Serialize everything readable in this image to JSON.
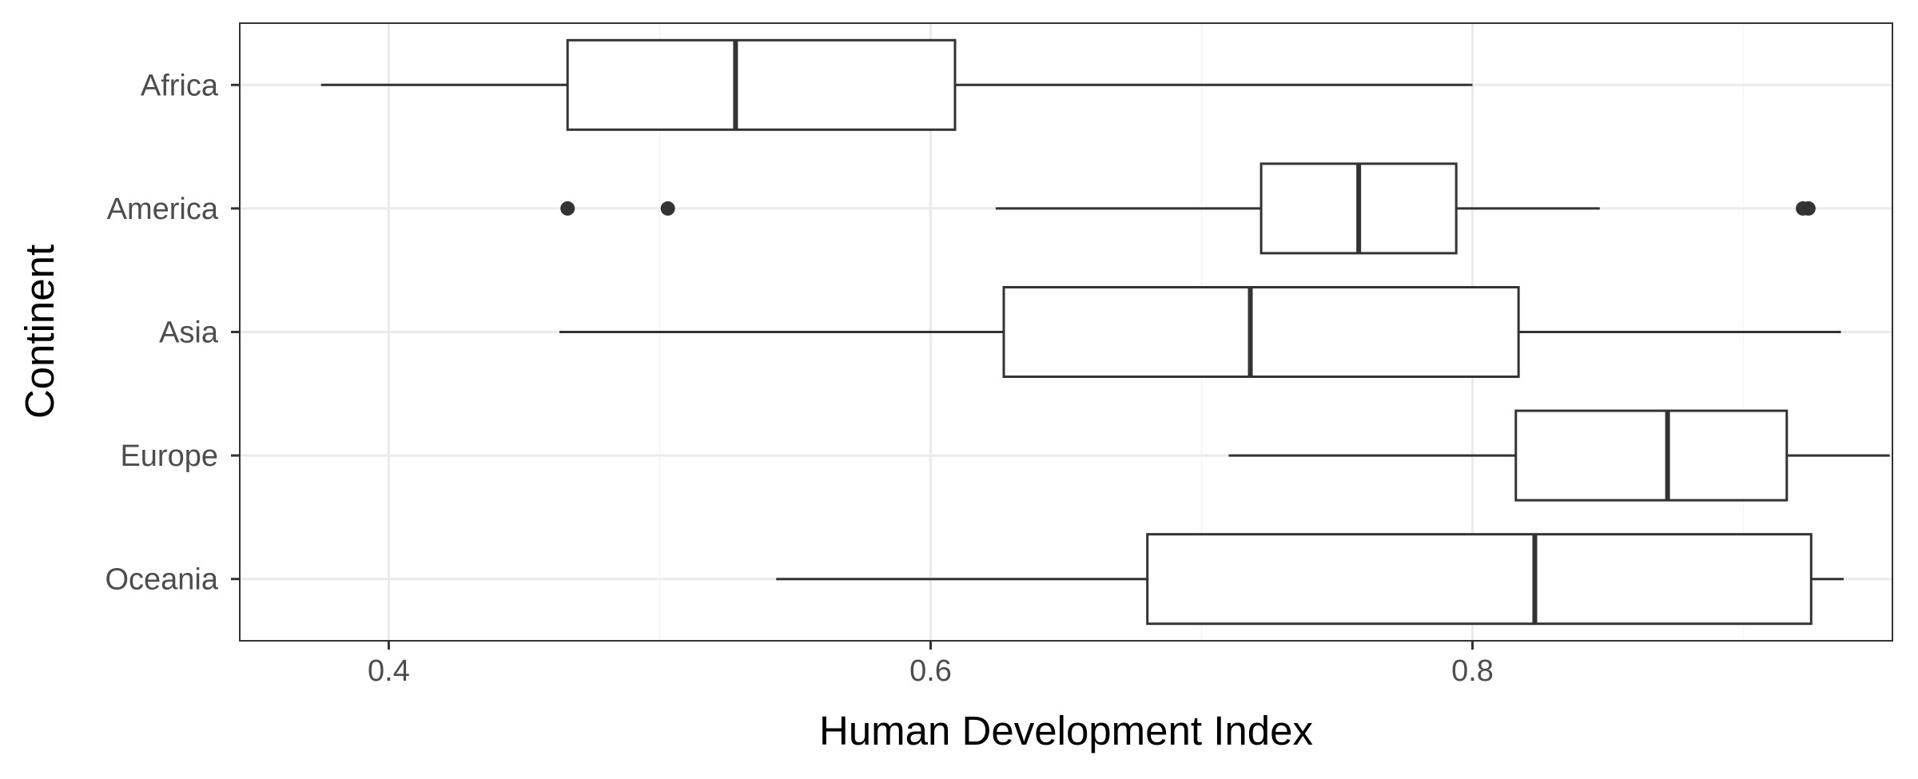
{
  "chart_data": {
    "type": "boxplot",
    "orientation": "horizontal",
    "title": "",
    "xlabel": "Human Development Index",
    "ylabel": "Continent",
    "xlim": [
      0.345,
      0.955
    ],
    "x_ticks": [
      0.4,
      0.6,
      0.8
    ],
    "x_tick_labels": [
      "0.4",
      "0.6",
      "0.8"
    ],
    "grid": true,
    "legend": "none",
    "categories": [
      "Africa",
      "America",
      "Asia",
      "Europe",
      "Oceania"
    ],
    "boxes": [
      {
        "category": "Africa",
        "whisker_low": 0.375,
        "q1": 0.466,
        "median": 0.528,
        "q3": 0.609,
        "whisker_high": 0.8,
        "outliers": []
      },
      {
        "category": "America",
        "whisker_low": 0.624,
        "q1": 0.722,
        "median": 0.758,
        "q3": 0.794,
        "whisker_high": 0.847,
        "outliers": [
          0.466,
          0.503,
          0.922,
          0.924
        ]
      },
      {
        "category": "Asia",
        "whisker_low": 0.463,
        "q1": 0.627,
        "median": 0.718,
        "q3": 0.817,
        "whisker_high": 0.936,
        "outliers": []
      },
      {
        "category": "Europe",
        "whisker_low": 0.71,
        "q1": 0.816,
        "median": 0.872,
        "q3": 0.916,
        "whisker_high": 0.954,
        "outliers": []
      },
      {
        "category": "Oceania",
        "whisker_low": 0.543,
        "q1": 0.68,
        "median": 0.823,
        "q3": 0.925,
        "whisker_high": 0.937,
        "outliers": []
      }
    ],
    "colors": {
      "box_fill": "#ffffff",
      "box_line": "#333333",
      "grid_major": "#ebebeb",
      "grid_minor": "#f5f5f5",
      "panel_border": "#333333"
    }
  }
}
